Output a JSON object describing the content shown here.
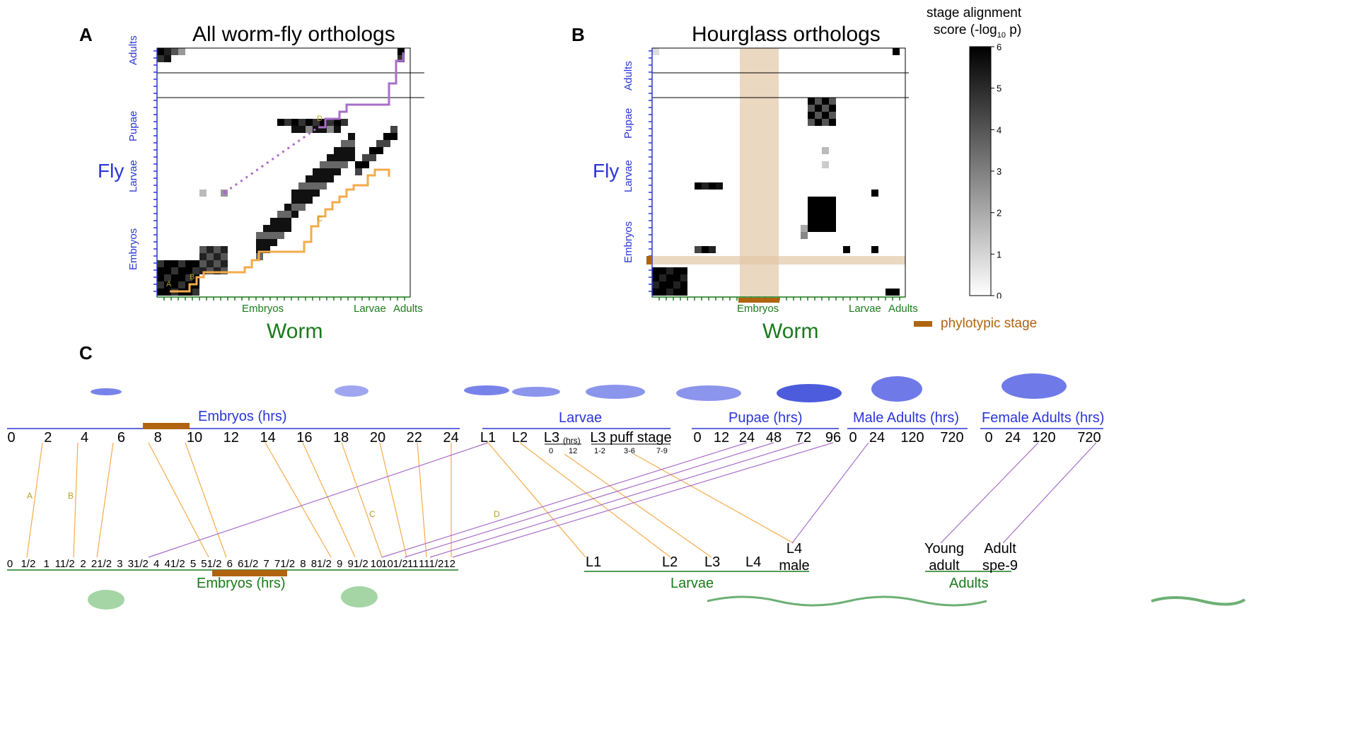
{
  "panelA": {
    "letter": "A",
    "title": "All worm-fly orthologs",
    "fly_axis": "Fly",
    "worm_axis": "Worm",
    "fly_stages": [
      "Adults",
      "Pupae",
      "Larvae",
      "Embryos"
    ],
    "worm_stages": [
      "Embryos",
      "Larvae",
      "Adults"
    ],
    "markers": [
      "A",
      "B",
      "C",
      "D"
    ]
  },
  "panelB": {
    "letter": "B",
    "title": "Hourglass orthologs",
    "fly_axis": "Fly",
    "worm_axis": "Worm",
    "fly_stages": [
      "Adults",
      "Pupae",
      "Larvae",
      "Embryos"
    ],
    "worm_stages": [
      "Embryos",
      "Larvae",
      "Adults"
    ]
  },
  "colorbar": {
    "label_line1": "stage alignment",
    "label_line2": "score (-log",
    "sub": "10",
    "label_tail": " p)",
    "ticks": [
      "6",
      "5",
      "4",
      "3",
      "2",
      "1",
      "0"
    ]
  },
  "legend": {
    "phylotypic": "phylotypic stage"
  },
  "panelC": {
    "letter": "C",
    "fly_groups": {
      "embryos": "Embryos (hrs)",
      "larvae": "Larvae",
      "pupae": "Pupae (hrs)",
      "male": "Male Adults (hrs)",
      "female": "Female Adults (hrs)"
    },
    "fly_embryo_ticks": [
      "0",
      "2",
      "4",
      "6",
      "8",
      "10",
      "12",
      "14",
      "16",
      "18",
      "20",
      "22",
      "24"
    ],
    "fly_larvae_ticks": [
      "L1",
      "L2",
      "L3",
      "L3 puff stage"
    ],
    "fly_larvae_sub": {
      "hrs": "(hrs)",
      "l3": [
        "0",
        "12"
      ],
      "puff": [
        "1-2",
        "3-6",
        "7-9"
      ]
    },
    "fly_pupae_ticks": [
      "0",
      "12",
      "24",
      "48",
      "72",
      "96"
    ],
    "fly_male_ticks": [
      "0",
      "24",
      "120",
      "720"
    ],
    "fly_female_ticks": [
      "0",
      "24",
      "120",
      "720"
    ],
    "worm_embryo_ticks": [
      "0",
      "1/2",
      "1",
      "11/2",
      "2",
      "21/2",
      "3",
      "31/2",
      "4",
      "41/2",
      "5",
      "51/2",
      "6",
      "61/2",
      "7",
      "71/2",
      "8",
      "81/2",
      "9",
      "91/2",
      "10",
      "101/2",
      "11",
      "111/2",
      "12"
    ],
    "worm_larvae_ticks": [
      "L1",
      "L2",
      "L3",
      "L4",
      "L4 male"
    ],
    "worm_adult_ticks": [
      "Young adult",
      "Adult spe-9"
    ],
    "worm_groups": {
      "embryos": "Embryos (hrs)",
      "larvae": "Larvae",
      "adults": "Adults"
    },
    "line_labels": [
      "A",
      "B",
      "C",
      "D"
    ]
  },
  "colors": {
    "fly": "#2b35d8",
    "worm": "#1a7a1a",
    "phylo": "#b0640f",
    "orange": "#f5ab4a",
    "purple": "#a86ec8"
  }
}
